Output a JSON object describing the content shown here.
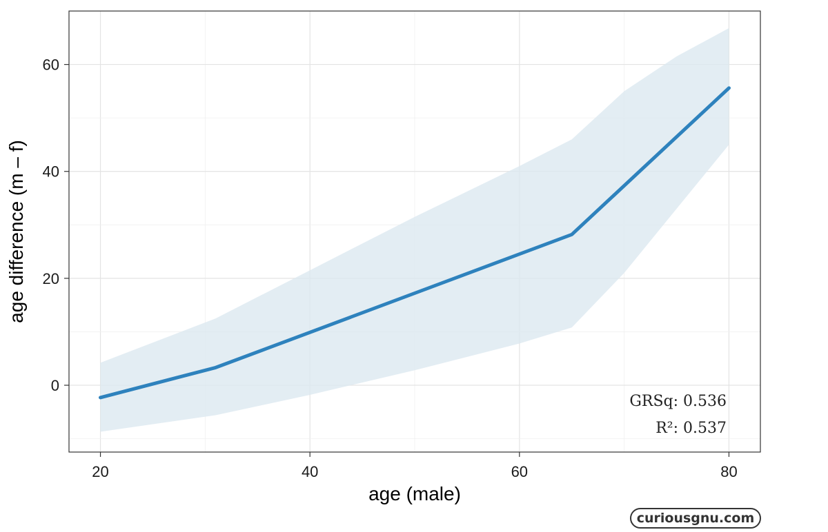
{
  "chart_data": {
    "type": "line",
    "xlabel": "age (male)",
    "ylabel": "age difference (m – f)",
    "xlim": [
      17,
      83
    ],
    "ylim": [
      -12.5,
      70
    ],
    "x_ticks": [
      20,
      40,
      60,
      80
    ],
    "y_ticks": [
      0,
      20,
      40,
      60
    ],
    "grid": true,
    "series": [
      {
        "x": [
          20,
          31,
          65,
          80
        ],
        "y": [
          -2.3,
          3.3,
          28.2,
          55.6
        ],
        "color": "#2e82bd"
      }
    ],
    "confidence_band": {
      "x": [
        20,
        31,
        40,
        50,
        60,
        65,
        70,
        75,
        80
      ],
      "upper": [
        4.2,
        12.5,
        21.5,
        31.5,
        41.0,
        46.0,
        55.0,
        61.5,
        66.8
      ],
      "lower": [
        -8.7,
        -5.6,
        -1.8,
        2.8,
        7.8,
        10.8,
        21.0,
        33.0,
        45.0
      ],
      "color": "#dce8f0"
    },
    "annotations": [
      "GRSq: 0.536",
      "R²: 0.537"
    ]
  },
  "watermark": "curiousgnu.com"
}
